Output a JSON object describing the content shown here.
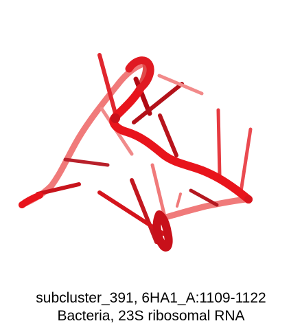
{
  "caption": {
    "line1": "subcluster_391, 6HA1_A:1109-1122",
    "line2": "Bacteria, 23S ribosomal RNA"
  },
  "colors": {
    "background": "#ffffff",
    "backbone_front": "#e8141c",
    "backbone_back": "#f07070",
    "base_dark": "#b00a14",
    "base_mid": "#d8202a",
    "base_light": "#f08080"
  },
  "subject": "rna-cartoon-render"
}
